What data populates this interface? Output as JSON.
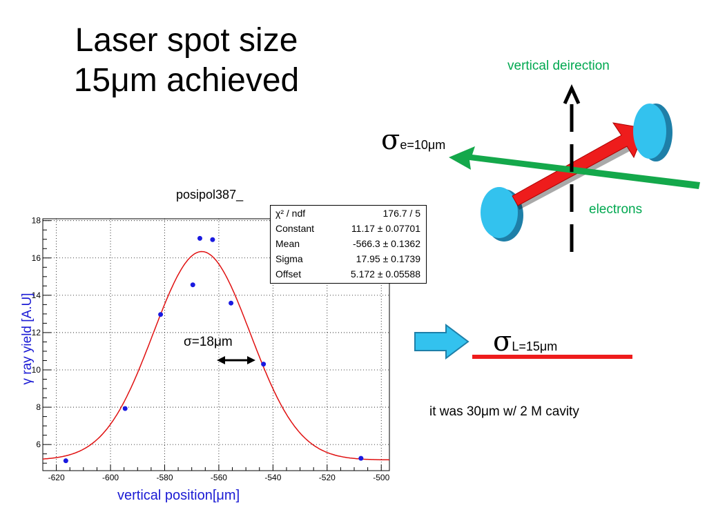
{
  "slide": {
    "title_line1": "Laser spot size",
    "title_line2": "15μm achieved",
    "sigma_annotation": "σ=18μm",
    "note": "it was 30μm w/ 2 M cavity"
  },
  "diagram": {
    "vertical_label": "vertical deirection",
    "electrons_label": "electrons",
    "sigma_e_symbol": "σ",
    "sigma_e_sub": "e=10μm",
    "sigma_l_symbol": "σ",
    "sigma_l_sub": "L=15μm",
    "colors": {
      "electron_beam": "#14a84b",
      "laser_beam": "#ee1c1c",
      "mirror": "#33c2ee",
      "side_arrow": "#33c2ee",
      "label_green": "#00a850"
    }
  },
  "stats": {
    "rows": [
      {
        "key": "χ² / ndf",
        "value": "176.7 / 5"
      },
      {
        "key": "Constant",
        "value": "11.17 ± 0.07701"
      },
      {
        "key": "Mean",
        "value": "-566.3 ± 0.1362"
      },
      {
        "key": "Sigma",
        "value": "17.95 ± 0.1739"
      },
      {
        "key": "Offset",
        "value": "5.172 ± 0.05588"
      }
    ]
  },
  "chart_data": {
    "type": "scatter",
    "title": "posipol387_",
    "xlabel": "vertical position[μm]",
    "ylabel": "γ ray yield [A.U]",
    "xlim": [
      -625,
      -497
    ],
    "ylim": [
      4.6,
      18.1
    ],
    "x_ticks": [
      -620,
      -600,
      -580,
      -560,
      -540,
      -520,
      -500
    ],
    "y_tick_labels": [
      "6",
      "8",
      "10",
      "12",
      "14",
      "16",
      "18"
    ],
    "series": [
      {
        "points": [
          {
            "x": -616.5,
            "y": 5.13
          },
          {
            "x": -594.6,
            "y": 7.93
          },
          {
            "x": -581.5,
            "y": 12.97
          },
          {
            "x": -569.6,
            "y": 14.56
          },
          {
            "x": -567.0,
            "y": 17.05
          },
          {
            "x": -562.3,
            "y": 16.98
          },
          {
            "x": -555.5,
            "y": 13.58
          },
          {
            "x": -543.5,
            "y": 10.31
          },
          {
            "x": -507.5,
            "y": 5.26
          }
        ]
      }
    ],
    "fit": {
      "type": "gaussian",
      "constant": 11.17,
      "mean": -566.3,
      "sigma": 17.95,
      "offset": 5.172,
      "color": "#e01010"
    },
    "marker_color": "#1a1ae0",
    "grid": true
  }
}
